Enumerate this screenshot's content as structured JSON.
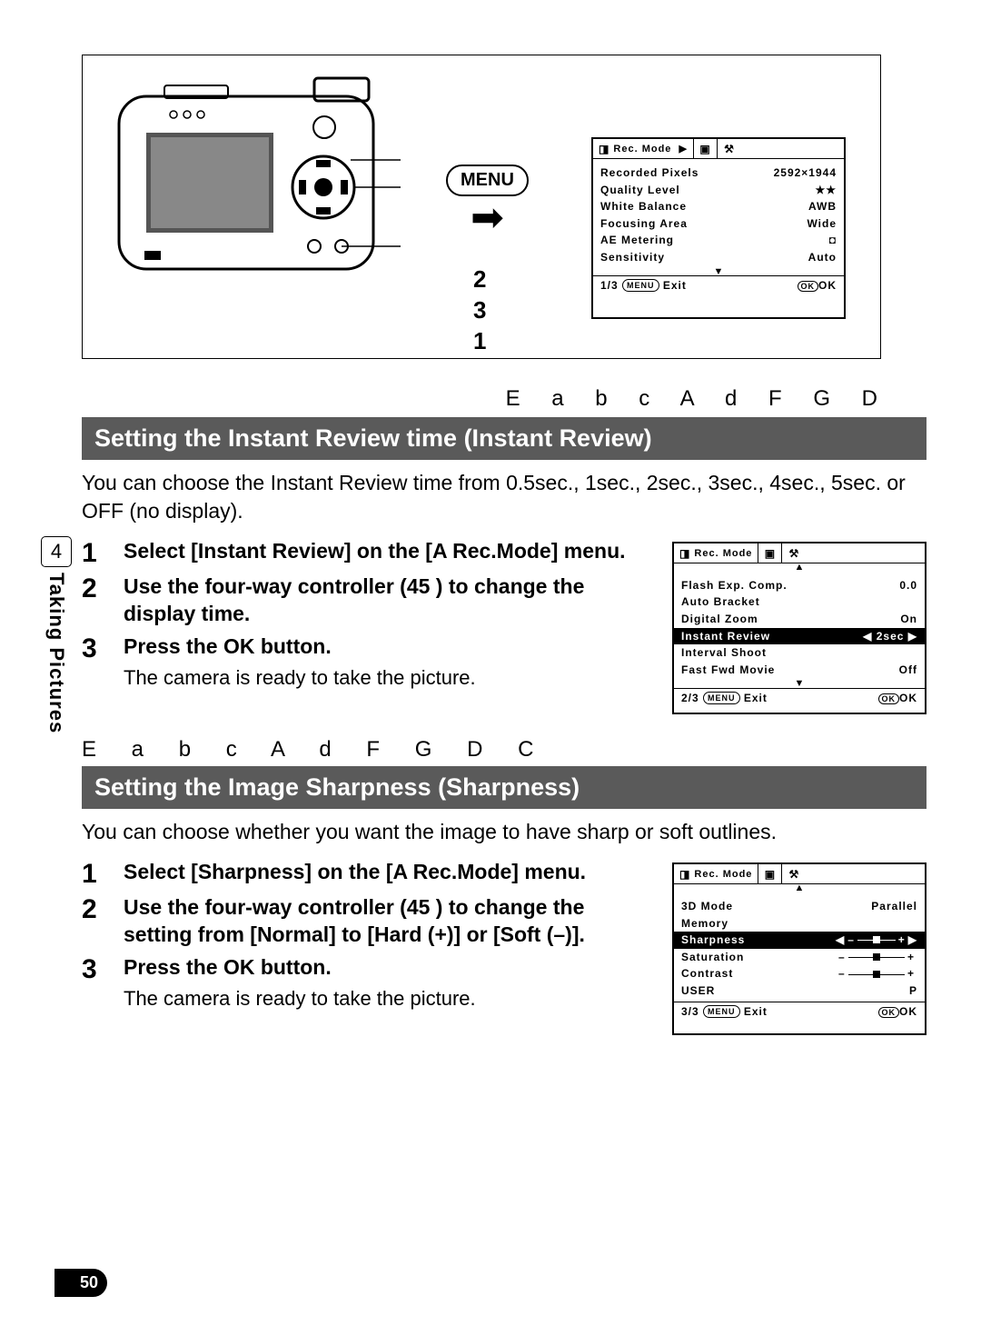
{
  "page_number": "50",
  "side_section_number": "4",
  "side_section_label": "Taking Pictures",
  "figure": {
    "menu_label": "MENU",
    "step_numbers": [
      "2",
      "3",
      "1"
    ],
    "lcd1": {
      "tab": "Rec. Mode",
      "rows": [
        {
          "k": "Recorded Pixels",
          "v": "2592×1944"
        },
        {
          "k": "Quality Level",
          "v": "★★"
        },
        {
          "k": "White Balance",
          "v": "AWB"
        },
        {
          "k": "Focusing Area",
          "v": "Wide"
        },
        {
          "k": "AE Metering",
          "v": "◘"
        },
        {
          "k": "Sensitivity",
          "v": "Auto"
        }
      ],
      "page": "1/3",
      "exit": "Exit",
      "ok": "OK"
    }
  },
  "mode_icons_1": "E   a  b  c  A  d    F   G  D",
  "section1": {
    "title": "Setting the Instant Review time (Instant Review)",
    "intro": "You can choose the Instant Review time from 0.5sec., 1sec., 2sec., 3sec., 4sec., 5sec. or OFF (no display).",
    "steps": [
      {
        "n": "1",
        "t": "Select [Instant Review] on the [A  Rec.Mode] menu."
      },
      {
        "n": "2",
        "t": "Use the four-way controller (45  ) to change the display time."
      },
      {
        "n": "3",
        "t": "Press the OK button.",
        "sub": "The camera is ready to take the picture."
      }
    ],
    "lcd": {
      "tab": "Rec. Mode",
      "rows": [
        {
          "k": "Flash Exp. Comp.",
          "v": "0.0"
        },
        {
          "k": "Auto Bracket",
          "v": ""
        },
        {
          "k": "Digital Zoom",
          "v": "On"
        },
        {
          "k": "Instant Review",
          "v": "2sec",
          "hi": true
        },
        {
          "k": "Interval Shoot",
          "v": ""
        },
        {
          "k": "Fast Fwd Movie",
          "v": "Off"
        }
      ],
      "page": "2/3",
      "exit": "Exit",
      "ok": "OK"
    }
  },
  "mode_icons_2": "E    a  b  c   A  d    F   G  D C",
  "section2": {
    "title": "Setting the Image Sharpness (Sharpness)",
    "intro": "You can choose whether you want the image to have sharp or soft outlines.",
    "steps": [
      {
        "n": "1",
        "t": "Select [Sharpness] on the [A  Rec.Mode] menu."
      },
      {
        "n": "2",
        "t": "Use the four-way controller (45  ) to change the setting from [Normal] to [Hard (+)] or [Soft (–)]."
      },
      {
        "n": "3",
        "t": "Press the OK button.",
        "sub": "The camera is ready to take the picture."
      }
    ],
    "lcd": {
      "tab": "Rec. Mode",
      "rows": [
        {
          "k": "3D Mode",
          "v": "Parallel"
        },
        {
          "k": "Memory",
          "v": ""
        },
        {
          "k": "Sharpness",
          "v": "slider",
          "hi": true
        },
        {
          "k": "Saturation",
          "v": "slider"
        },
        {
          "k": "Contrast",
          "v": "slider"
        },
        {
          "k": "USER",
          "v": "P"
        }
      ],
      "page": "3/3",
      "exit": "Exit",
      "ok": "OK"
    }
  },
  "colors": {
    "section_bar_bg": "#5a5a5a",
    "text": "#000000",
    "bg": "#ffffff"
  }
}
